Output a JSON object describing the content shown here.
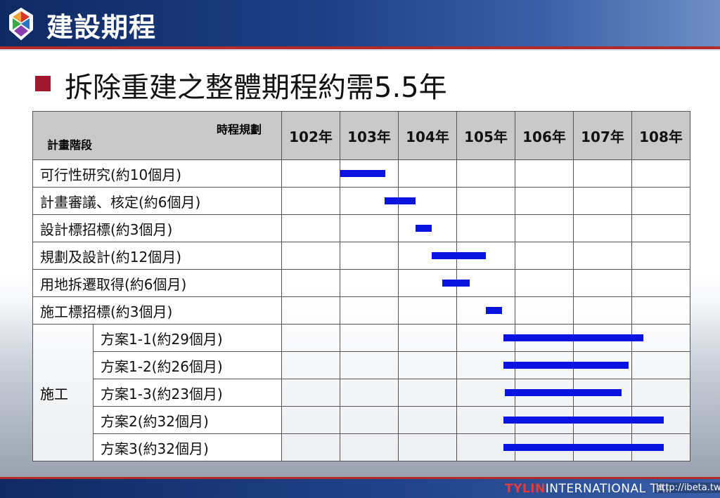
{
  "header": {
    "title": "建設期程"
  },
  "slide": {
    "subtitle": "拆除重建之整體期程約需5.5年"
  },
  "table": {
    "corner_top": "時程規劃",
    "corner_bottom": "計畫階段",
    "years": [
      "102年",
      "103年",
      "104年",
      "105年",
      "106年",
      "107年",
      "108年"
    ],
    "rows": [
      {
        "label": "可行性研究(約10個月)"
      },
      {
        "label": "計畫審議、核定(約6個月)"
      },
      {
        "label": "設計標招標(約3個月)"
      },
      {
        "label": "規劃及設計(約12個月)"
      },
      {
        "label": "用地拆遷取得(約6個月)"
      },
      {
        "label": "施工標招標(約3個月)"
      }
    ],
    "construction_group": "施工",
    "construction_rows": [
      {
        "label": "方案1-1(約29個月)"
      },
      {
        "label": "方案1-2(約26個月)"
      },
      {
        "label": "方案1-3(約23個月)"
      },
      {
        "label": "方案2(約32個月)"
      },
      {
        "label": "方案3(約32個月)"
      }
    ]
  },
  "chart_data": {
    "type": "bar",
    "orientation": "horizontal-gantt",
    "x_unit": "year",
    "x_categories": [
      "102年",
      "103年",
      "104年",
      "105年",
      "106年",
      "107年",
      "108年"
    ],
    "xlim": [
      102,
      109
    ],
    "bar_color": "#0a14e0",
    "tasks": [
      {
        "name": "可行性研究(約10個月)",
        "start": 103.0,
        "end": 103.78
      },
      {
        "name": "計畫審議、核定(約6個月)",
        "start": 103.77,
        "end": 104.3
      },
      {
        "name": "設計標招標(約3個月)",
        "start": 104.3,
        "end": 104.57
      },
      {
        "name": "規劃及設計(約12個月)",
        "start": 104.57,
        "end": 105.5
      },
      {
        "name": "用地拆遷取得(約6個月)",
        "start": 104.75,
        "end": 105.22
      },
      {
        "name": "施工標招標(約3個月)",
        "start": 105.5,
        "end": 105.78
      },
      {
        "name": "方案1-1(約29個月)",
        "start": 105.8,
        "end": 108.2
      },
      {
        "name": "方案1-2(約26個月)",
        "start": 105.8,
        "end": 107.95
      },
      {
        "name": "方案1-3(約23個月)",
        "start": 105.82,
        "end": 107.82
      },
      {
        "name": "方案2(約32個月)",
        "start": 105.8,
        "end": 108.55
      },
      {
        "name": "方案3(約32個月)",
        "start": 105.8,
        "end": 108.55
      }
    ]
  },
  "footer": {
    "brand_red": "TYLIN",
    "brand_rest": "INTERNATIONAL TAI",
    "watermark": "http://ibeta.tw"
  }
}
